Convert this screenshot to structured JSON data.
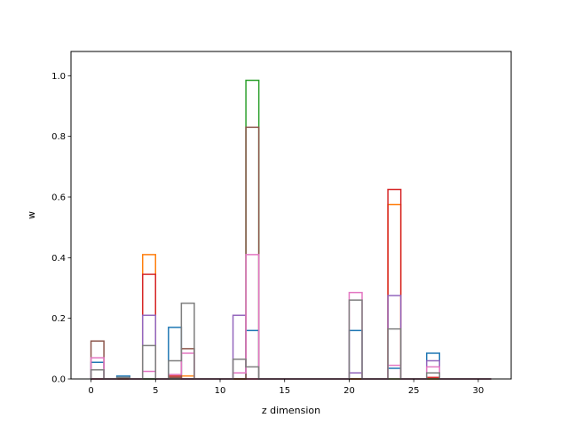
{
  "chart_data": {
    "type": "bar",
    "style": "step-histogram",
    "title": "",
    "xlabel": "z dimension",
    "ylabel": "w",
    "xlim": [
      -1.55,
      32.55
    ],
    "ylim": [
      0,
      1.08
    ],
    "xticks": [
      0,
      5,
      10,
      15,
      20,
      25,
      30
    ],
    "yticks": [
      0.0,
      0.2,
      0.4,
      0.6,
      0.8,
      1.0
    ],
    "xtick_labels": [
      "0",
      "5",
      "10",
      "15",
      "20",
      "25",
      "30"
    ],
    "ytick_labels": [
      "0.0",
      "0.2",
      "0.4",
      "0.6",
      "0.8",
      "1.0"
    ],
    "grid": false,
    "legend": "none",
    "bin_edges": [
      0,
      1,
      2,
      3,
      4,
      5,
      6,
      7,
      8,
      9,
      10,
      11,
      12,
      13,
      14,
      15,
      16,
      17,
      18,
      19,
      20,
      21,
      22,
      23,
      24,
      25,
      26,
      27,
      28,
      29,
      30,
      31
    ],
    "series": [
      {
        "color": "#1f77b4",
        "values": [
          0.055,
          0,
          0.01,
          0,
          0,
          0,
          0.17,
          0,
          0,
          0,
          0,
          0,
          0.16,
          0,
          0,
          0,
          0,
          0,
          0,
          0,
          0.16,
          0,
          0,
          0.035,
          0,
          0,
          0.085,
          0,
          0,
          0,
          0
        ]
      },
      {
        "color": "#ff7f0e",
        "values": [
          0,
          0,
          0,
          0,
          0.41,
          0,
          0,
          0.01,
          0,
          0,
          0,
          0,
          0,
          0,
          0,
          0,
          0,
          0,
          0,
          0,
          0,
          0,
          0,
          0.575,
          0,
          0,
          0,
          0,
          0,
          0,
          0
        ]
      },
      {
        "color": "#2ca02c",
        "values": [
          0,
          0,
          0,
          0,
          0,
          0,
          0,
          0,
          0,
          0,
          0,
          0,
          0.985,
          0,
          0,
          0,
          0,
          0,
          0,
          0,
          0,
          0,
          0,
          0,
          0,
          0,
          0,
          0,
          0,
          0,
          0
        ]
      },
      {
        "color": "#d62728",
        "values": [
          0,
          0,
          0,
          0,
          0.345,
          0,
          0.01,
          0,
          0,
          0,
          0,
          0,
          0,
          0,
          0,
          0,
          0,
          0,
          0,
          0,
          0,
          0,
          0,
          0.625,
          0,
          0,
          0.005,
          0,
          0,
          0,
          0
        ]
      },
      {
        "color": "#9467bd",
        "values": [
          0,
          0,
          0,
          0,
          0.21,
          0,
          0,
          0,
          0,
          0,
          0,
          0.21,
          0,
          0,
          0,
          0,
          0,
          0,
          0,
          0,
          0.02,
          0,
          0,
          0.275,
          0,
          0,
          0.06,
          0,
          0,
          0,
          0
        ]
      },
      {
        "color": "#8c564b",
        "values": [
          0.125,
          0,
          0,
          0,
          0,
          0,
          0.005,
          0.1,
          0,
          0,
          0,
          0,
          0.83,
          0,
          0,
          0,
          0,
          0,
          0,
          0,
          0,
          0,
          0,
          0,
          0,
          0,
          0,
          0,
          0,
          0,
          0
        ]
      },
      {
        "color": "#e377c2",
        "values": [
          0.07,
          0,
          0.005,
          0,
          0.025,
          0,
          0.015,
          0.085,
          0,
          0,
          0,
          0.02,
          0.41,
          0,
          0,
          0,
          0,
          0,
          0,
          0,
          0.285,
          0,
          0,
          0.045,
          0,
          0,
          0.04,
          0,
          0,
          0,
          0
        ]
      },
      {
        "color": "#7f7f7f",
        "values": [
          0.03,
          0,
          0.005,
          0,
          0.11,
          0,
          0.06,
          0.25,
          0,
          0,
          0,
          0.065,
          0.04,
          0,
          0,
          0,
          0,
          0,
          0,
          0,
          0.26,
          0,
          0,
          0.165,
          0,
          0,
          0.02,
          0,
          0,
          0,
          0
        ]
      }
    ]
  }
}
